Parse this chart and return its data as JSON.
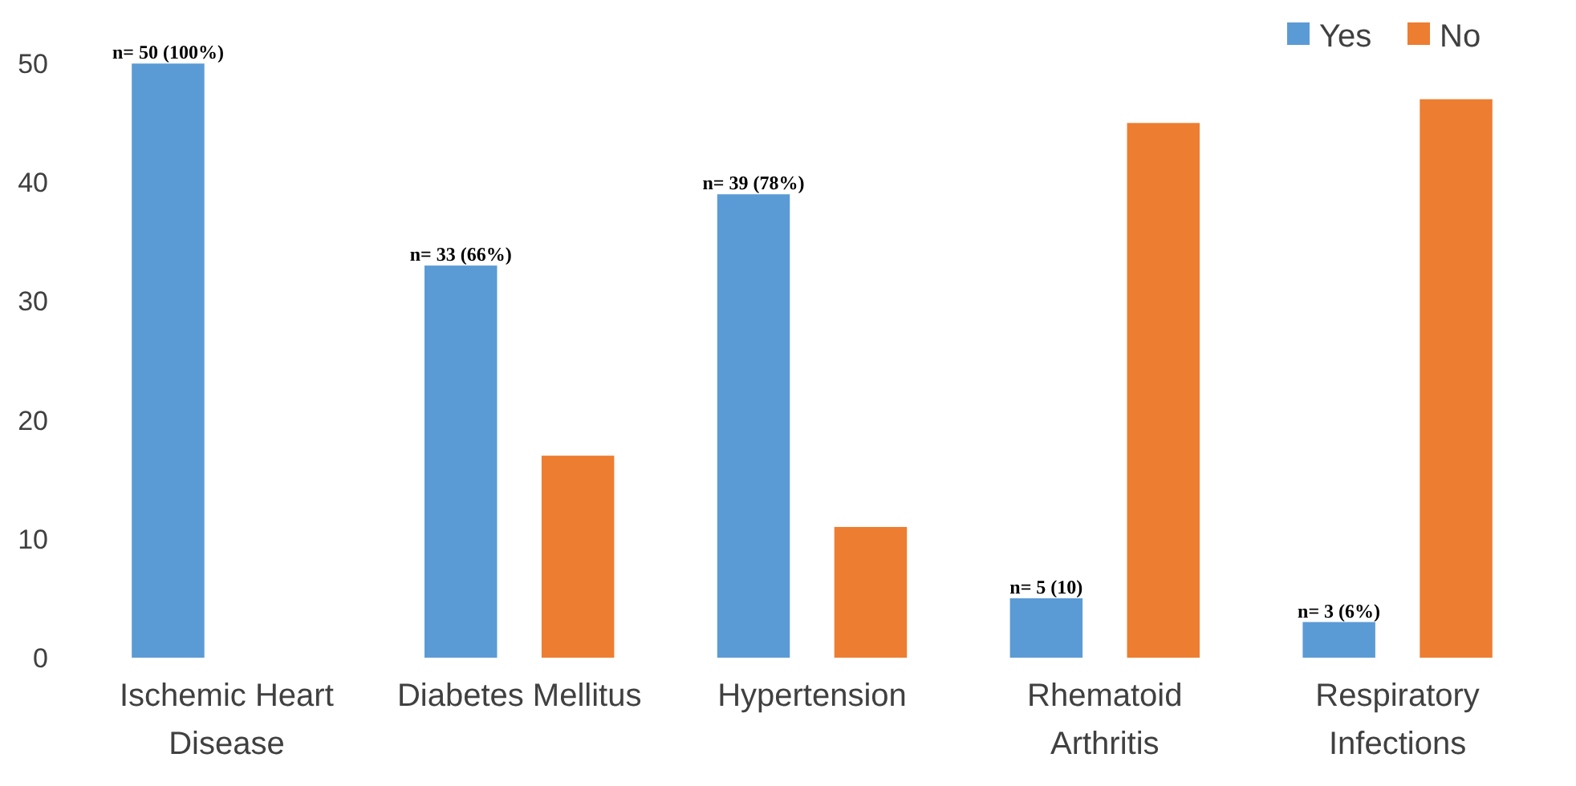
{
  "chart_data": {
    "type": "bar",
    "categories": [
      "Ischemic Heart Disease",
      "Diabetes Mellitus",
      "Hypertension",
      "Rhematoid Arthritis",
      "Respiratory Infections"
    ],
    "series": [
      {
        "name": "Yes",
        "color": "#5b9bd5",
        "values": [
          50,
          33,
          39,
          5,
          3
        ],
        "value_labels": [
          "n= 50 (100%)",
          "n= 33 (66%)",
          "n= 39 (78%)",
          "n= 5 (10)",
          "n= 3 (6%)"
        ]
      },
      {
        "name": "No",
        "color": "#ed7d31",
        "values": [
          0,
          17,
          11,
          45,
          47
        ]
      }
    ],
    "ylim": [
      0,
      54
    ],
    "yticks": [
      0,
      10,
      20,
      30,
      40,
      50
    ],
    "grid": false,
    "legend": "top right"
  }
}
